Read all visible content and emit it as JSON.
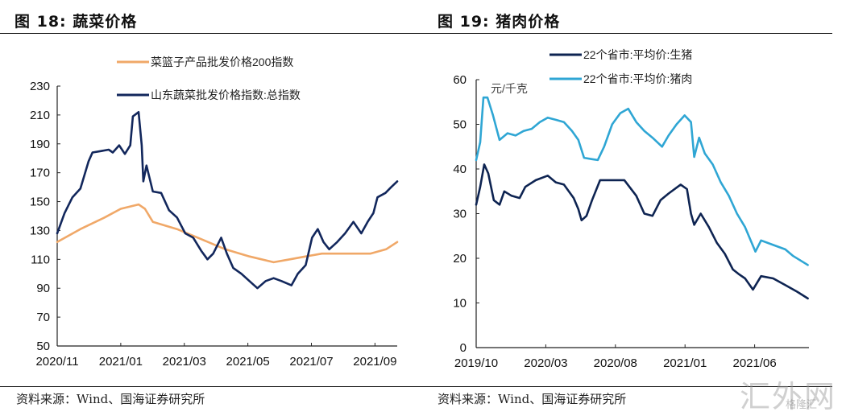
{
  "figures": {
    "left_title": "图 18:  蔬菜价格",
    "right_title": "图 19:  猪肉价格",
    "left_source": "资料来源：Wind、国海证券研究所",
    "right_source": "资料来源：Wind、国海证券研究所"
  },
  "watermark": {
    "main": "汇外网",
    "sub": "格隆汇"
  },
  "chart_data": [
    {
      "type": "line",
      "title": "蔬菜价格",
      "xlabel": "",
      "ylabel": "",
      "ylim": [
        50,
        230
      ],
      "yticks": [
        50,
        70,
        90,
        110,
        130,
        150,
        170,
        190,
        210,
        230
      ],
      "xlim_months": [
        0,
        10.7
      ],
      "xticks": [
        {
          "label": "2020/11",
          "m": 0
        },
        {
          "label": "2021/01",
          "m": 2
        },
        {
          "label": "2021/03",
          "m": 4
        },
        {
          "label": "2021/05",
          "m": 6
        },
        {
          "label": "2021/07",
          "m": 8
        },
        {
          "label": "2021/09",
          "m": 10
        }
      ],
      "legend_position": "top",
      "series": [
        {
          "name": "菜篮子产品批发价格200指数",
          "color": "#F0A868",
          "x_months": [
            0,
            0.73,
            1.49,
            2.0,
            2.56,
            2.76,
            3.01,
            3.77,
            4.53,
            5.29,
            6.05,
            6.81,
            7.32,
            7.82,
            8.33,
            9.09,
            9.85,
            10.35,
            10.7
          ],
          "values": [
            122,
            131,
            139,
            145,
            148,
            145,
            136,
            131,
            124,
            117,
            112,
            108,
            110,
            112,
            114,
            114,
            114,
            117,
            122
          ]
        },
        {
          "name": "山东蔬菜批发价格指数:总指数",
          "color": "#12275C",
          "x_months": [
            0,
            0.23,
            0.48,
            0.73,
            0.99,
            1.11,
            1.37,
            1.62,
            1.75,
            1.95,
            2.13,
            2.3,
            2.38,
            2.56,
            2.66,
            2.71,
            2.81,
            3.01,
            3.27,
            3.52,
            3.77,
            4.03,
            4.28,
            4.53,
            4.73,
            4.91,
            5.16,
            5.34,
            5.54,
            5.8,
            6.05,
            6.3,
            6.56,
            6.81,
            7.06,
            7.37,
            7.57,
            7.82,
            8.02,
            8.2,
            8.38,
            8.56,
            8.81,
            9.06,
            9.32,
            9.57,
            9.77,
            9.95,
            10.08,
            10.33,
            10.51,
            10.7
          ],
          "values": [
            128,
            142,
            153,
            159,
            178,
            184,
            185,
            186,
            184,
            189,
            183,
            189,
            209,
            212,
            189,
            164,
            175,
            157,
            156,
            144,
            139,
            128,
            125,
            116,
            110,
            114,
            125,
            114,
            104,
            100,
            95,
            90,
            95,
            97,
            95,
            92,
            100,
            106,
            125,
            131,
            122,
            117,
            122,
            128,
            136,
            128,
            136,
            142,
            153,
            156,
            160,
            164
          ]
        }
      ]
    },
    {
      "type": "line",
      "title": "猪肉价格",
      "xlabel": "",
      "ylabel": "元/千克",
      "ylim": [
        0,
        60
      ],
      "yticks": [
        0,
        10,
        20,
        30,
        40,
        50,
        60
      ],
      "xlim_months": [
        0,
        23.9
      ],
      "xticks": [
        {
          "label": "2019/10",
          "m": 0
        },
        {
          "label": "2020/03",
          "m": 5
        },
        {
          "label": "2020/08",
          "m": 10
        },
        {
          "label": "2021/01",
          "m": 15
        },
        {
          "label": "2021/06",
          "m": 20
        }
      ],
      "legend_position": "top",
      "series": [
        {
          "name": "22个省市:平均价:生猪",
          "color": "#0E2452",
          "x_months": [
            0,
            0.29,
            0.58,
            0.87,
            1.27,
            1.68,
            2.02,
            2.54,
            3.12,
            3.53,
            4.28,
            5.14,
            5.72,
            6.3,
            7.0,
            7.34,
            7.57,
            7.92,
            8.32,
            8.9,
            9.77,
            10.64,
            11.5,
            12.08,
            12.66,
            13.24,
            13.82,
            14.69,
            15.14,
            15.43,
            15.66,
            16.13,
            16.71,
            17.28,
            17.86,
            18.44,
            18.84,
            19.31,
            19.88,
            20.46,
            21.33,
            22.2,
            23.06,
            23.82
          ],
          "values": [
            32,
            36,
            41,
            39,
            33,
            32,
            35,
            34,
            33.5,
            36,
            37.5,
            38.5,
            37,
            36.5,
            33.5,
            31,
            28.5,
            29.5,
            33,
            37.5,
            37.5,
            37.5,
            34,
            30,
            29.5,
            33,
            34.5,
            36.5,
            35.5,
            30,
            27.5,
            30,
            27,
            23.5,
            21,
            17.5,
            16.5,
            15.5,
            13,
            16,
            15.5,
            14,
            12.5,
            11
          ]
        },
        {
          "name": "22个省市:平均价:猪肉",
          "color": "#2FA6D4",
          "x_months": [
            0,
            0.29,
            0.52,
            0.81,
            1.21,
            1.68,
            2.25,
            2.83,
            3.41,
            3.99,
            4.57,
            5.14,
            5.72,
            6.3,
            6.88,
            7.34,
            7.75,
            8.32,
            8.73,
            9.19,
            9.77,
            10.35,
            10.92,
            11.5,
            12.08,
            12.66,
            13.35,
            13.82,
            14.39,
            14.97,
            15.43,
            15.66,
            16.01,
            16.42,
            16.99,
            17.57,
            18.15,
            18.73,
            19.31,
            20.06,
            20.46,
            21.33,
            22.2,
            22.77,
            23.82
          ],
          "values": [
            42,
            46,
            56,
            56,
            52,
            46.5,
            48,
            47.5,
            48.5,
            49,
            50.5,
            51.5,
            51,
            50.5,
            48.5,
            46.5,
            42.5,
            42.2,
            42,
            45,
            50,
            52.5,
            53.5,
            50.5,
            48.5,
            47,
            45,
            47.5,
            50,
            52,
            50.5,
            42.7,
            47,
            43.5,
            41,
            37,
            34,
            30,
            27,
            21.5,
            24,
            23,
            22,
            20.5,
            18.5
          ]
        }
      ]
    }
  ]
}
